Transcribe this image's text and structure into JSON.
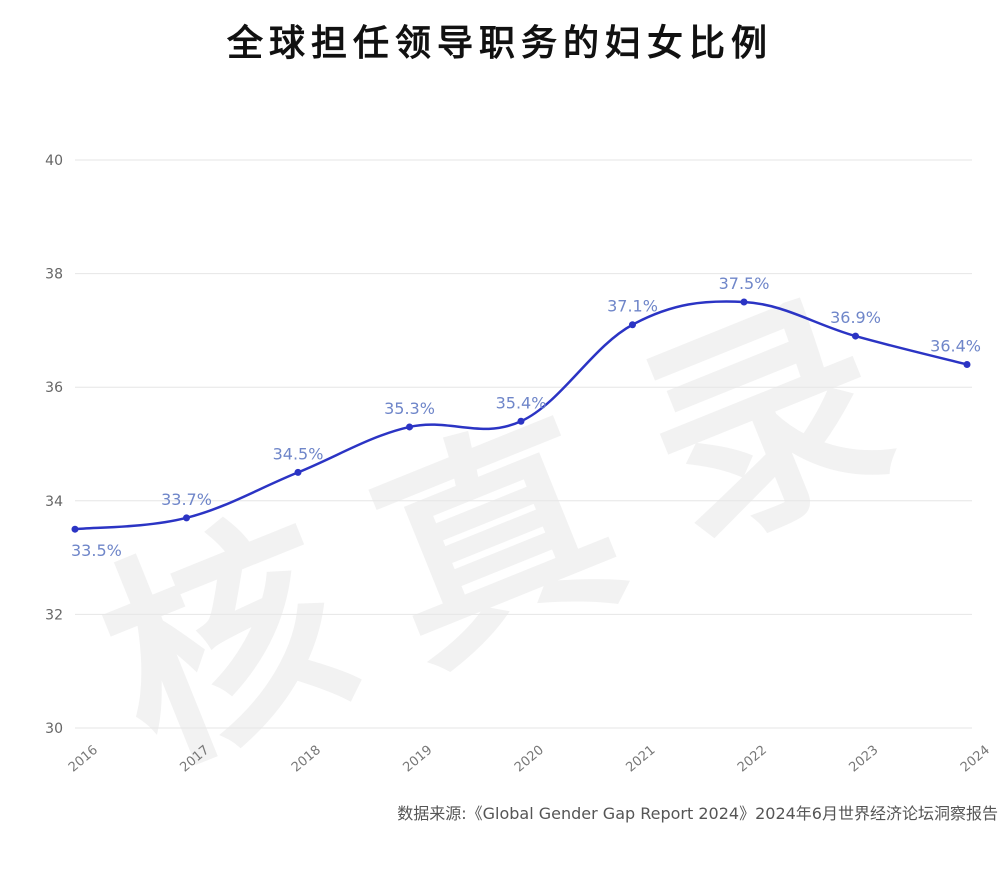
{
  "title": "全球担任领导职务的妇女比例",
  "source": "数据来源:《Global Gender Gap Report 2024》2024年6月世界经济论坛洞察报告",
  "watermark": "核真录",
  "chart_data": {
    "type": "line",
    "title": "全球担任领导职务的妇女比例",
    "xlabel": "",
    "ylabel": "",
    "categories": [
      "2016",
      "2017",
      "2018",
      "2019",
      "2020",
      "2021",
      "2022",
      "2023",
      "2024"
    ],
    "values": [
      33.5,
      33.7,
      34.5,
      35.3,
      35.4,
      37.1,
      37.5,
      36.9,
      36.4
    ],
    "data_labels": [
      "33.5%",
      "33.7%",
      "34.5%",
      "35.3%",
      "35.4%",
      "37.1%",
      "37.5%",
      "36.9%",
      "36.4%"
    ],
    "ylim": [
      30,
      40
    ],
    "yticks": [
      30,
      32,
      34,
      36,
      38,
      40
    ],
    "grid": true,
    "legend": "none",
    "line_color": "#2b34c4",
    "label_color": "#6f86c9"
  }
}
